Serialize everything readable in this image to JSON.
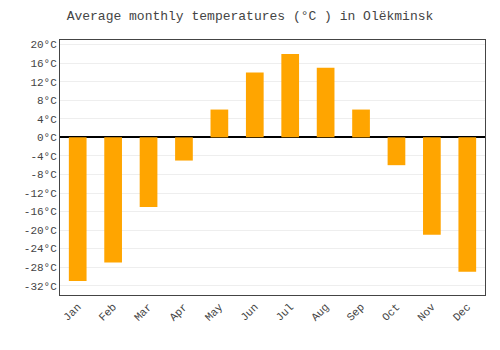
{
  "chart_data": {
    "type": "bar",
    "title": "Average monthly temperatures (°C ) in Olëkminsk",
    "categories": [
      "Jan",
      "Feb",
      "Mar",
      "Apr",
      "May",
      "Jun",
      "Jul",
      "Aug",
      "Sep",
      "Oct",
      "Nov",
      "Dec"
    ],
    "values": [
      -31,
      -27,
      -15,
      -5,
      6,
      14,
      18,
      15,
      6,
      -6,
      -21,
      -29
    ],
    "color": "#FFA500",
    "ylim": [
      -34,
      21
    ],
    "yticks": [
      {
        "value": -32,
        "label": "-32°C"
      },
      {
        "value": -28,
        "label": "-28°C"
      },
      {
        "value": -24,
        "label": "-24°C"
      },
      {
        "value": -20,
        "label": "-20°C"
      },
      {
        "value": -16,
        "label": "-16°C"
      },
      {
        "value": -12,
        "label": "-12°C"
      },
      {
        "value": -8,
        "label": "-8°C"
      },
      {
        "value": -4,
        "label": "-4°C"
      },
      {
        "value": 0,
        "label": "0°C"
      },
      {
        "value": 4,
        "label": "4°C"
      },
      {
        "value": 8,
        "label": "8°C"
      },
      {
        "value": 12,
        "label": "12°C"
      },
      {
        "value": 16,
        "label": "16°C"
      },
      {
        "value": 20,
        "label": "20°C"
      }
    ],
    "grid": true
  }
}
